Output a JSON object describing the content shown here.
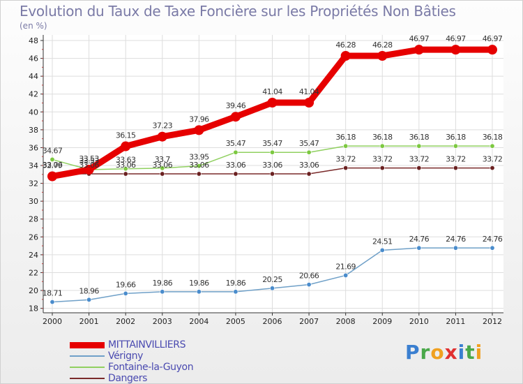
{
  "header": {
    "title": "Evolution du Taux de Taxe Foncière sur les Propriétés Non Bâties",
    "unit": "(en %)"
  },
  "logo": {
    "letters": [
      "P",
      "r",
      "o",
      "x",
      "i",
      "t",
      "i"
    ],
    "colors": [
      "#3a7fd0",
      "#4aa84a",
      "#f0a020",
      "#e03030",
      "#3a7fd0",
      "#4aa84a",
      "#f0a020"
    ]
  },
  "chart_data": {
    "type": "line",
    "title": "Evolution du Taux de Taxe Foncière sur les Propriétés Non Bâties",
    "ylabel": "(en %)",
    "xlabel": "",
    "categories": [
      "2000",
      "2001",
      "2002",
      "2003",
      "2004",
      "2005",
      "2006",
      "2007",
      "2008",
      "2009",
      "2010",
      "2011",
      "2012"
    ],
    "ylim": [
      17.5,
      48
    ],
    "yticks": [
      18,
      20,
      22,
      24,
      26,
      28,
      30,
      32,
      34,
      36,
      38,
      40,
      42,
      44,
      46,
      48
    ],
    "grid": true,
    "legend_position": "bottom-left",
    "series": [
      {
        "name": "MITTAINVILLIERS",
        "color": "#e60000",
        "width": 9,
        "marker": 7,
        "values": [
          32.79,
          33.53,
          36.15,
          37.23,
          37.96,
          39.46,
          41.04,
          41.04,
          46.28,
          46.28,
          46.97,
          46.97,
          46.97
        ],
        "labels": [
          "32.79",
          "33.53",
          "36.15",
          "37.23",
          "37.96",
          "39.46",
          "41.04",
          "41.04",
          "46.28",
          "46.28",
          "46.97",
          "46.97",
          "46.97"
        ]
      },
      {
        "name": "Vérigny",
        "color": "#6fa0c8",
        "width": 1.5,
        "marker": 3.2,
        "markerFill": "#4a8ccc",
        "values": [
          18.71,
          18.96,
          19.66,
          19.86,
          19.86,
          19.86,
          20.25,
          20.66,
          21.69,
          24.51,
          24.76,
          24.76,
          24.76
        ],
        "labels": [
          "18.71",
          "18.96",
          "19.66",
          "19.86",
          "19.86",
          "19.86",
          "20.25",
          "20.66",
          "21.69",
          "24.51",
          "24.76",
          "24.76",
          "24.76"
        ]
      },
      {
        "name": "Fontaine-la-Guyon",
        "color": "#90d060",
        "width": 1.5,
        "marker": 3.2,
        "markerFill": "#7cc840",
        "values": [
          34.67,
          33.53,
          33.63,
          33.7,
          33.95,
          35.47,
          35.47,
          35.47,
          36.18,
          36.18,
          36.18,
          36.18,
          36.18
        ],
        "labels": [
          "34.67",
          "33.53",
          "33.63",
          "33.7",
          "33.95",
          "35.47",
          "35.47",
          "35.47",
          "36.18",
          "36.18",
          "36.18",
          "36.18",
          "36.18"
        ]
      },
      {
        "name": "Dangers",
        "color": "#7a2a2a",
        "width": 1.5,
        "marker": 3.2,
        "markerFill": "#6a2020",
        "values": [
          33.06,
          33.06,
          33.06,
          33.06,
          33.06,
          33.06,
          33.06,
          33.06,
          33.72,
          33.72,
          33.72,
          33.72,
          33.72
        ],
        "labels": [
          "33.06",
          "33.06",
          "33.06",
          "33.06",
          "33.06",
          "33.06",
          "33.06",
          "33.06",
          "33.72",
          "33.72",
          "33.72",
          "33.72",
          "33.72"
        ]
      }
    ]
  }
}
